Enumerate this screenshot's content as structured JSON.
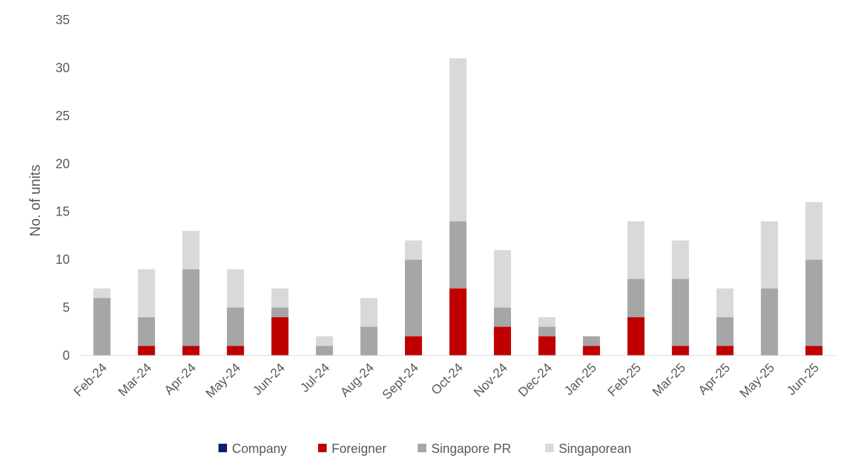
{
  "chart_data": {
    "type": "bar",
    "stacked": true,
    "title": "",
    "xlabel": "",
    "ylabel": "No. of units",
    "ylim": [
      0,
      35
    ],
    "yticks": [
      0,
      5,
      10,
      15,
      20,
      25,
      30,
      35
    ],
    "grid": false,
    "legend_position": "bottom",
    "categories": [
      "Feb-24",
      "Mar-24",
      "Apr-24",
      "May-24",
      "Jun-24",
      "Jul-24",
      "Aug-24",
      "Sept-24",
      "Oct-24",
      "Nov-24",
      "Dec-24",
      "Jan-25",
      "Feb-25",
      "Mar-25",
      "Apr-25",
      "May-25",
      "Jun-25"
    ],
    "series": [
      {
        "name": "Company",
        "color": "#0b2265",
        "values": [
          0,
          0,
          0,
          0,
          0,
          0,
          0,
          0,
          0,
          0,
          0,
          0,
          0,
          0,
          0,
          0,
          0
        ]
      },
      {
        "name": "Foreigner",
        "color": "#c00000",
        "values": [
          0,
          1,
          1,
          1,
          4,
          0,
          0,
          2,
          7,
          3,
          2,
          1,
          4,
          1,
          1,
          0,
          1
        ]
      },
      {
        "name": "Singapore PR",
        "color": "#a6a6a6",
        "values": [
          6,
          3,
          8,
          4,
          1,
          1,
          3,
          8,
          7,
          2,
          1,
          1,
          4,
          7,
          3,
          7,
          9
        ]
      },
      {
        "name": "Singaporean",
        "color": "#d9d9d9",
        "values": [
          1,
          5,
          4,
          4,
          2,
          1,
          3,
          2,
          17,
          6,
          1,
          0,
          6,
          4,
          3,
          7,
          6
        ]
      }
    ]
  }
}
